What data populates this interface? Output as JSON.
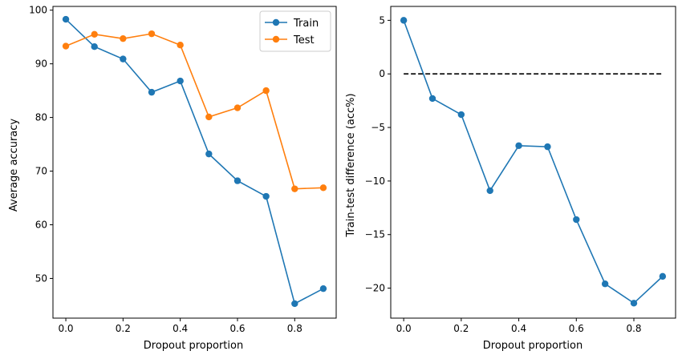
{
  "chart_data": [
    {
      "type": "line",
      "xlabel": "Dropout proportion",
      "ylabel": "Average accuracy",
      "x": [
        0.0,
        0.1,
        0.2,
        0.3,
        0.4,
        0.5,
        0.6,
        0.7,
        0.8,
        0.9
      ],
      "xlim": [
        -0.045,
        0.945
      ],
      "ylim": [
        42.6,
        100.7
      ],
      "xticks": [
        0.0,
        0.2,
        0.4,
        0.6,
        0.8
      ],
      "xtick_labels": [
        "0.0",
        "0.2",
        "0.4",
        "0.6",
        "0.8"
      ],
      "yticks": [
        50,
        60,
        70,
        80,
        90,
        100
      ],
      "ytick_labels": [
        "50",
        "60",
        "70",
        "80",
        "90",
        "100"
      ],
      "series": [
        {
          "name": "Train",
          "color": "#1f77b4",
          "values": [
            98.3,
            93.2,
            90.9,
            84.7,
            86.8,
            73.2,
            68.2,
            65.3,
            45.3,
            48.1
          ]
        },
        {
          "name": "Test",
          "color": "#ff7f0e",
          "values": [
            93.3,
            95.5,
            94.7,
            95.6,
            93.5,
            80.1,
            81.8,
            85.0,
            66.7,
            66.9
          ]
        }
      ],
      "legend": "top-right",
      "grid": false
    },
    {
      "type": "line",
      "xlabel": "Dropout proportion",
      "ylabel": "Train-test difference (acc%)",
      "x": [
        0.0,
        0.1,
        0.2,
        0.3,
        0.4,
        0.5,
        0.6,
        0.7,
        0.8,
        0.9
      ],
      "xlim": [
        -0.045,
        0.945
      ],
      "ylim": [
        -22.8,
        6.3
      ],
      "xticks": [
        0.0,
        0.2,
        0.4,
        0.6,
        0.8
      ],
      "xtick_labels": [
        "0.0",
        "0.2",
        "0.4",
        "0.6",
        "0.8"
      ],
      "yticks": [
        5,
        0,
        -5,
        -10,
        -15,
        -20
      ],
      "ytick_labels": [
        "5",
        "0",
        "−5",
        "−10",
        "−15",
        "−20"
      ],
      "series": [
        {
          "color": "#1f77b4",
          "values": [
            5.0,
            -2.3,
            -3.8,
            -10.9,
            -6.7,
            -6.8,
            -13.6,
            -19.6,
            -21.4,
            -18.9
          ]
        }
      ],
      "reference_line": {
        "y": 0,
        "x_range": [
          0.0,
          0.9
        ],
        "style": "dashed",
        "color": "#000000"
      },
      "grid": false
    }
  ]
}
